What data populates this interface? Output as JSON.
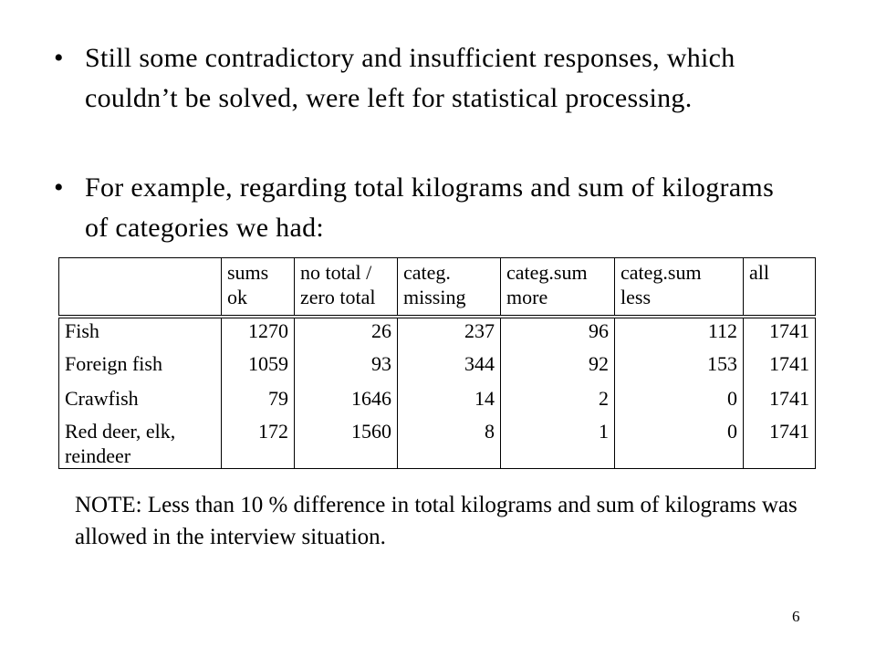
{
  "bullets": [
    "Still some contradictory and insufficient responses, which couldn’t be solved, were left for statistical processing.",
    "For example, regarding total kilograms and sum of kilograms of categories we had:"
  ],
  "table": {
    "header": [
      [],
      [
        "sums",
        "ok"
      ],
      [
        "no total /",
        "zero total"
      ],
      [
        "categ.",
        "missing"
      ],
      [
        "categ.sum",
        "more"
      ],
      [
        "categ.sum",
        "less"
      ],
      [
        "all"
      ]
    ],
    "rows": [
      [
        "Fish",
        1270,
        26,
        237,
        96,
        112,
        1741
      ],
      [
        "Foreign fish",
        1059,
        93,
        344,
        92,
        153,
        1741
      ],
      [
        "Crawfish",
        79,
        1646,
        14,
        2,
        0,
        1741
      ],
      [
        "Red deer, elk, reindeer",
        172,
        1560,
        8,
        1,
        0,
        1741
      ]
    ]
  },
  "note": "NOTE: Less than 10 % difference in total kilograms and sum of kilograms was allowed in the interview situation.",
  "page_number": "6"
}
